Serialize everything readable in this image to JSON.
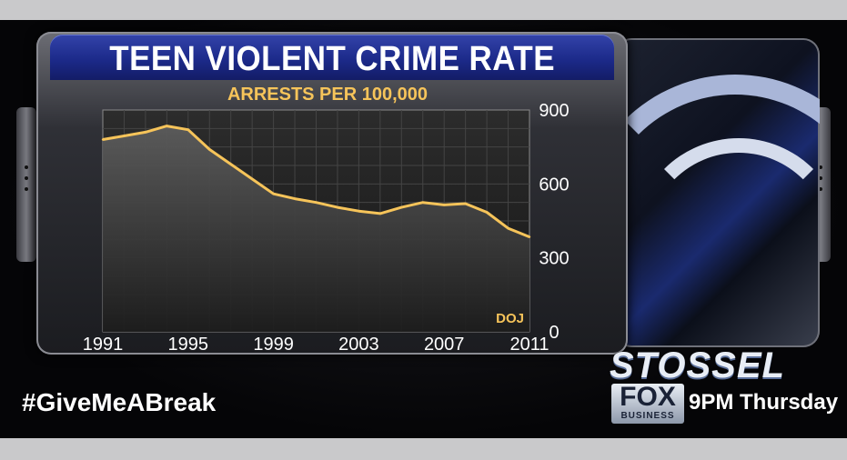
{
  "banner": {
    "hashtag": "#GiveMeABreak",
    "show_name": "STOSSEL",
    "network_logo": "FOX",
    "network_sub": "BUSINESS",
    "schedule": "9PM Thursday"
  },
  "colors": {
    "title_bar": "#1c2a8a",
    "accent_line": "#f6c45a",
    "plot_background": "#3a3a3a",
    "text": "#ffffff"
  },
  "chart_data": {
    "type": "area",
    "title": "TEEN VIOLENT CRIME RATE",
    "subtitle": "ARRESTS PER 100,000",
    "source": "DOJ",
    "x_ticks": [
      "1991",
      "1995",
      "1999",
      "2003",
      "2007",
      "2011"
    ],
    "y_ticks": [
      "0",
      "300",
      "600",
      "900"
    ],
    "xlim": [
      1991,
      2011
    ],
    "ylim": [
      0,
      900
    ],
    "grid": true,
    "series": [
      {
        "x": [
          1991,
          1992,
          1993,
          1994,
          1995,
          1996,
          1997,
          1998,
          1999,
          2000,
          2001,
          2002,
          2003,
          2004,
          2005,
          2006,
          2007,
          2008,
          2009,
          2010,
          2011
        ],
        "y": [
          780,
          795,
          810,
          835,
          820,
          740,
          680,
          620,
          560,
          540,
          525,
          505,
          490,
          480,
          505,
          525,
          515,
          520,
          485,
          420,
          385
        ]
      }
    ]
  }
}
